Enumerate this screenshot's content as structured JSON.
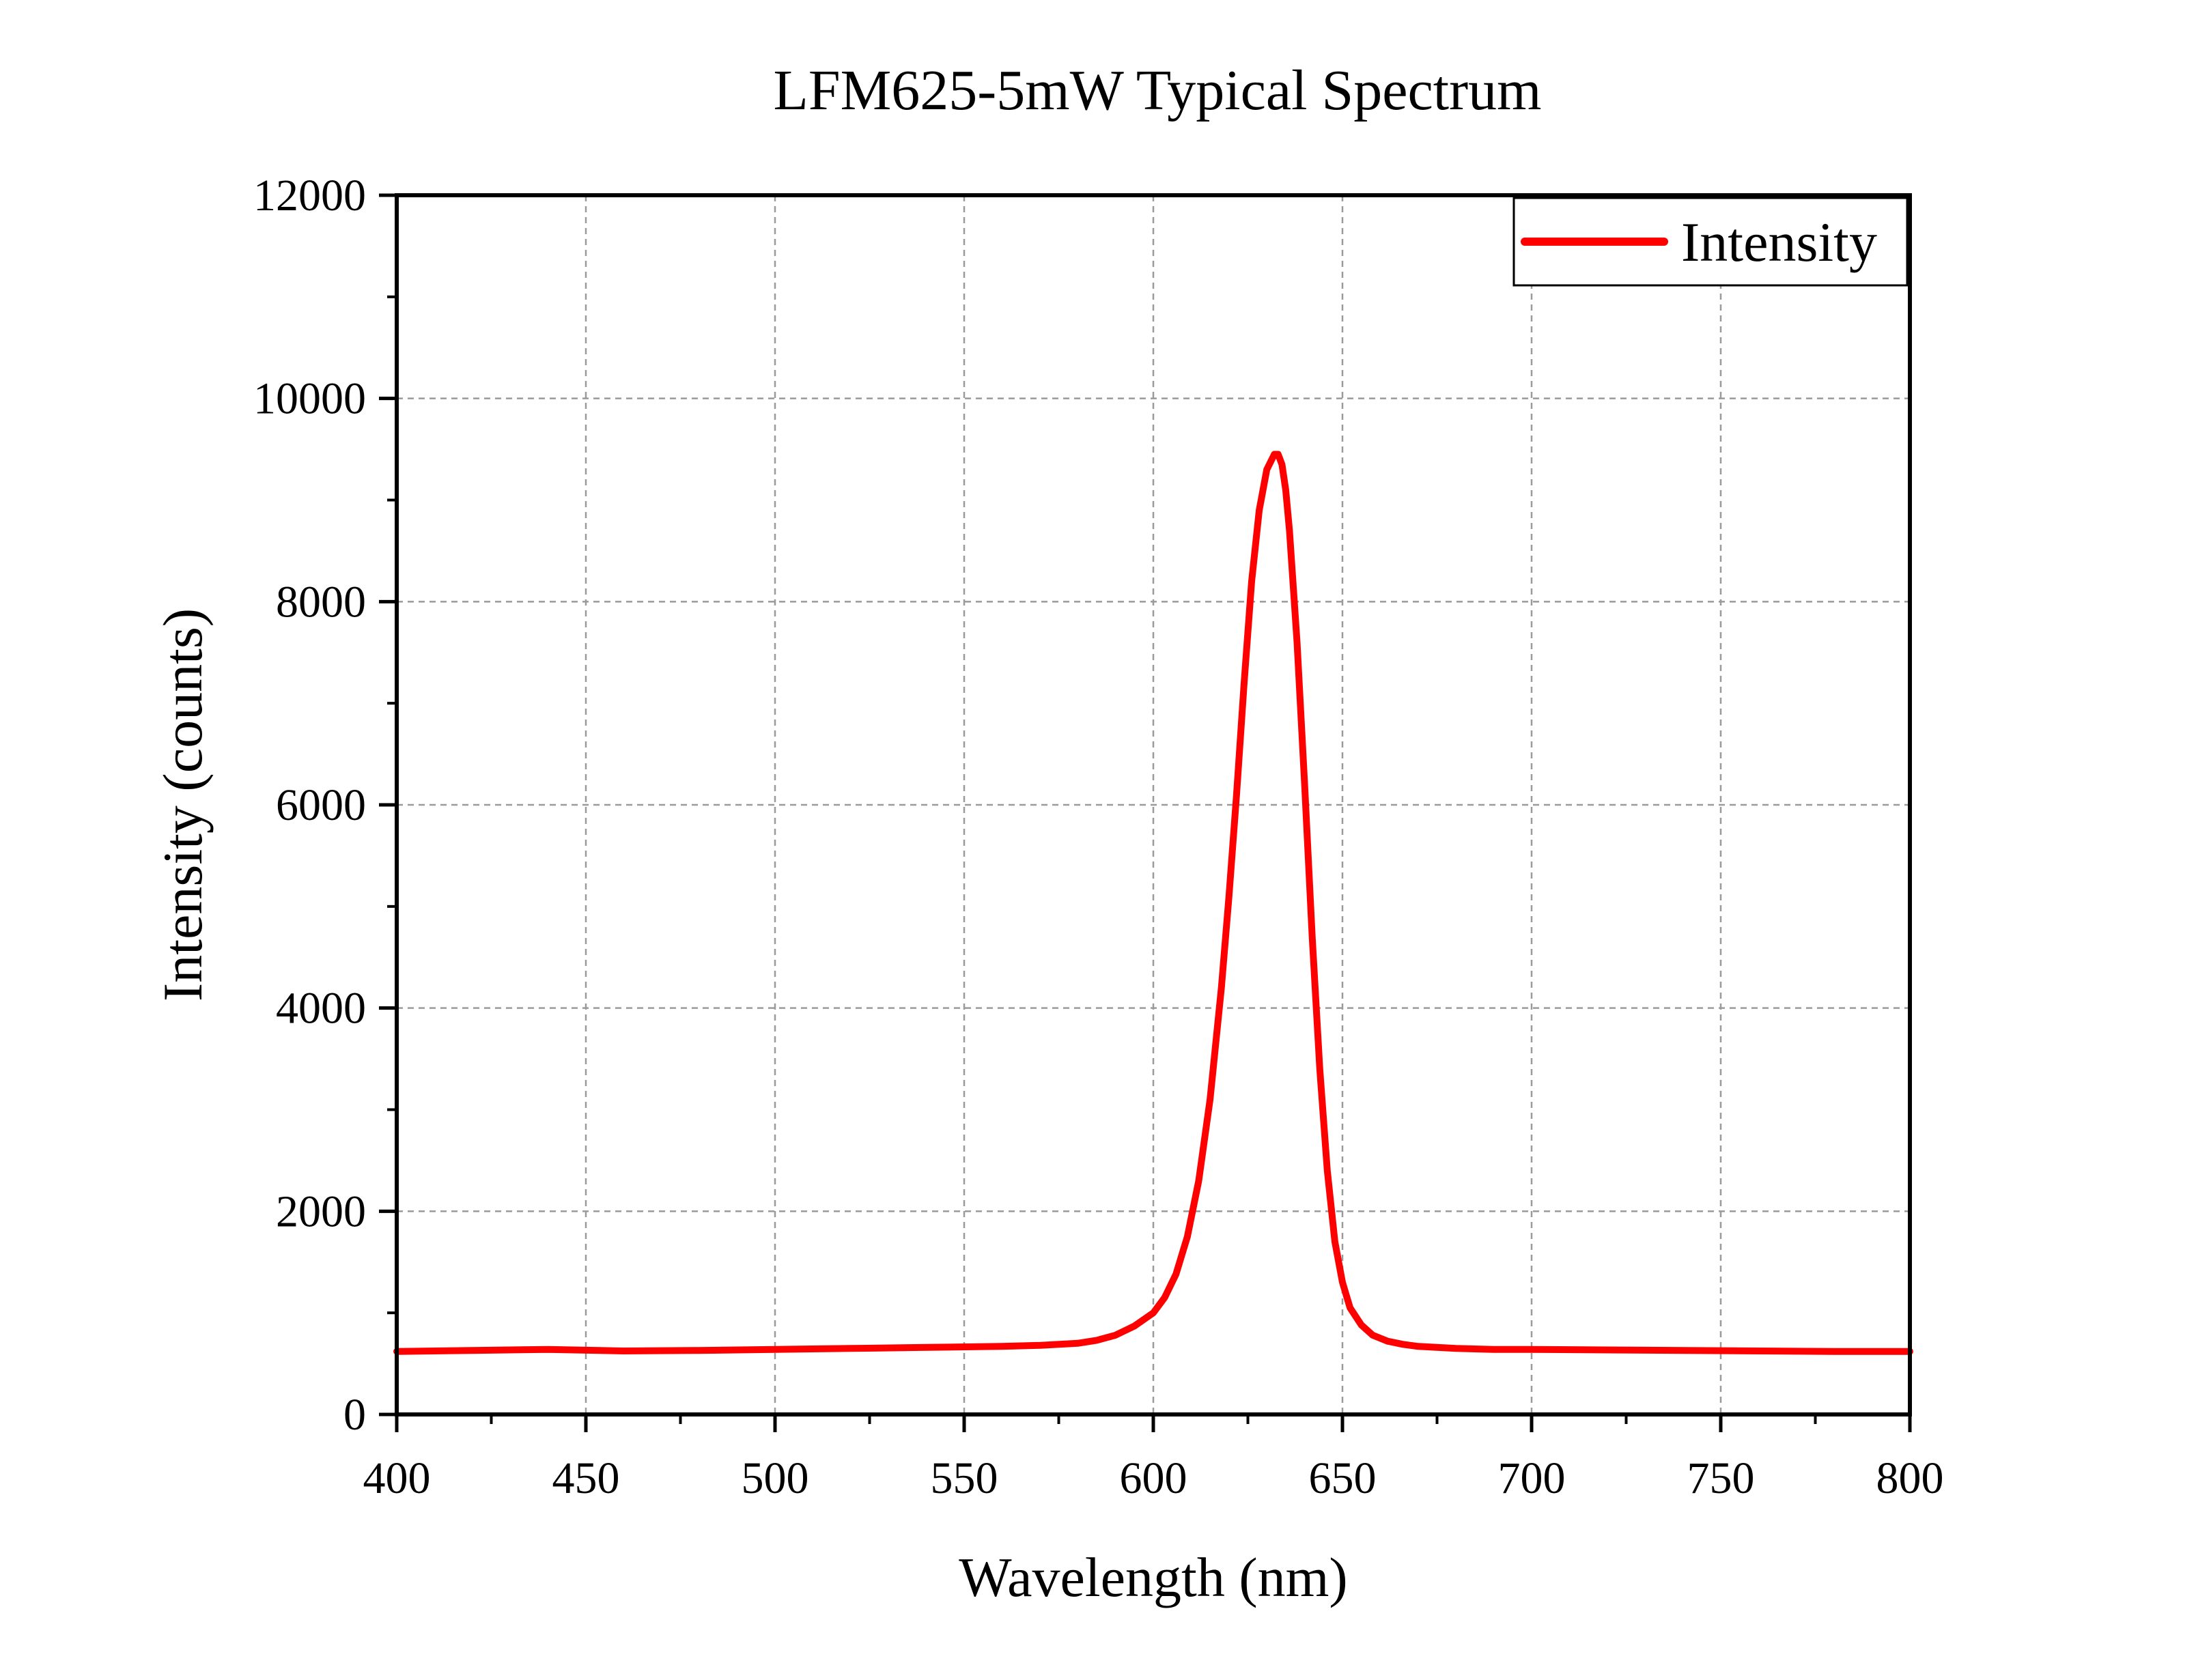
{
  "chart_data": {
    "type": "line",
    "title": "LFM625-5mW Typical Spectrum",
    "xlabel": "Wavelength (nm)",
    "ylabel": "Intensity (counts)",
    "xlim": [
      400,
      800
    ],
    "ylim": [
      0,
      12000
    ],
    "x_ticks": [
      "400",
      "450",
      "500",
      "550",
      "600",
      "650",
      "700",
      "750",
      "800"
    ],
    "y_ticks": [
      "0",
      "2000",
      "4000",
      "6000",
      "8000",
      "10000",
      "12000"
    ],
    "grid": true,
    "legend_position": "top-right",
    "series": [
      {
        "name": "Intensity",
        "color": "#ff0000",
        "x": [
          400,
          420,
          440,
          460,
          480,
          500,
          520,
          540,
          560,
          570,
          580,
          585,
          590,
          595,
          600,
          603,
          606,
          609,
          612,
          615,
          618,
          620,
          622,
          624,
          626,
          628,
          630,
          632,
          633,
          634,
          635,
          636,
          638,
          640,
          642,
          644,
          646,
          648,
          650,
          652,
          655,
          658,
          662,
          666,
          670,
          680,
          690,
          700,
          720,
          740,
          760,
          780,
          800
        ],
        "y": [
          620,
          630,
          640,
          625,
          630,
          640,
          650,
          660,
          670,
          680,
          700,
          730,
          780,
          870,
          1000,
          1150,
          1380,
          1750,
          2300,
          3100,
          4200,
          5100,
          6100,
          7200,
          8200,
          8900,
          9300,
          9450,
          9450,
          9350,
          9100,
          8700,
          7600,
          6200,
          4700,
          3400,
          2400,
          1700,
          1300,
          1050,
          880,
          780,
          720,
          690,
          670,
          650,
          640,
          640,
          635,
          630,
          625,
          620,
          620
        ]
      }
    ]
  }
}
